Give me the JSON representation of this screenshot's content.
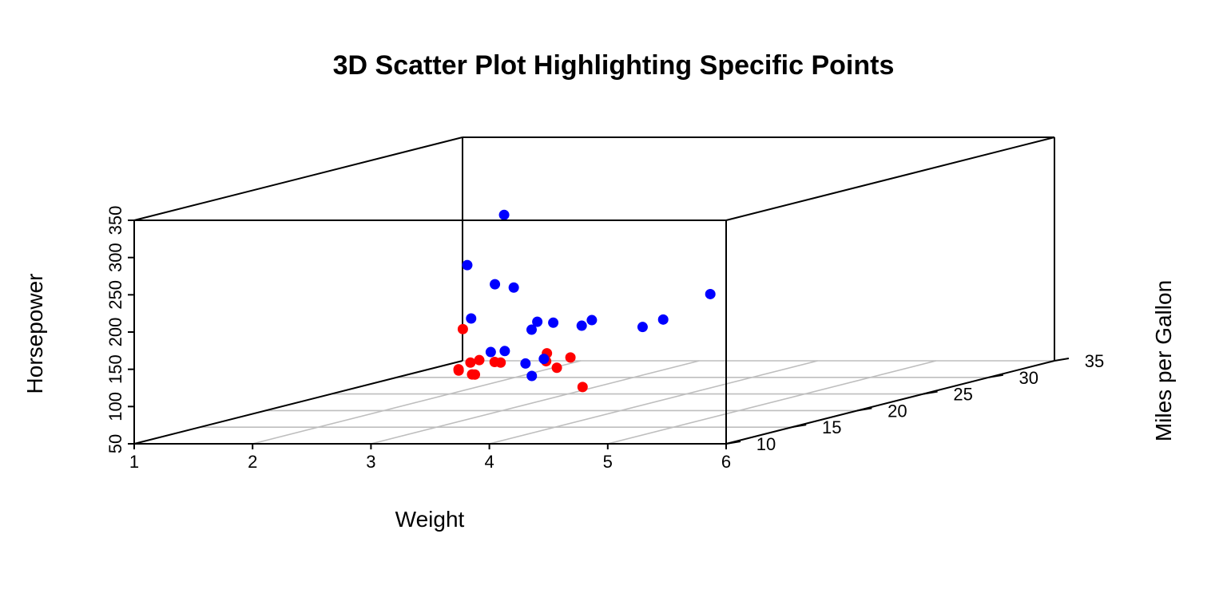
{
  "chart_data": {
    "type": "scatter",
    "title": "3D Scatter Plot Highlighting Specific Points",
    "xlabel": "Weight",
    "ylabel": "Miles per Gallon",
    "zlabel": "Horsepower",
    "xlim": [
      1,
      6
    ],
    "ylim": [
      10,
      35
    ],
    "zlim": [
      50,
      350
    ],
    "x_ticks": [
      "1",
      "2",
      "3",
      "4",
      "5",
      "6"
    ],
    "y_ticks": [
      "10",
      "15",
      "20",
      "25",
      "30",
      "35"
    ],
    "z_ticks": [
      "50",
      "100",
      "150",
      "200",
      "250",
      "300",
      "350"
    ],
    "grid": true,
    "colors": {
      "highlighted": "#ff0000",
      "other": "#0000ff",
      "axes": "#000000",
      "grid": "#bebebe"
    },
    "series": [
      {
        "color": "#ff0000",
        "points": [
          {
            "x": 2.62,
            "y": 21.0,
            "z": 110
          },
          {
            "x": 2.875,
            "y": 21.0,
            "z": 110
          },
          {
            "x": 2.32,
            "y": 22.8,
            "z": 93
          },
          {
            "x": 3.215,
            "y": 21.4,
            "z": 110
          },
          {
            "x": 3.19,
            "y": 24.4,
            "z": 62
          },
          {
            "x": 3.15,
            "y": 22.8,
            "z": 95
          },
          {
            "x": 2.2,
            "y": 32.4,
            "z": 66
          },
          {
            "x": 1.615,
            "y": 30.4,
            "z": 52
          },
          {
            "x": 1.835,
            "y": 33.9,
            "z": 65
          },
          {
            "x": 2.465,
            "y": 21.5,
            "z": 97
          },
          {
            "x": 1.935,
            "y": 27.3,
            "z": 66
          },
          {
            "x": 2.14,
            "y": 26.0,
            "z": 91
          },
          {
            "x": 1.513,
            "y": 30.4,
            "z": 113
          },
          {
            "x": 2.78,
            "y": 21.4,
            "z": 109
          }
        ]
      },
      {
        "color": "#0000ff",
        "points": [
          {
            "x": 3.44,
            "y": 18.7,
            "z": 175
          },
          {
            "x": 3.46,
            "y": 18.1,
            "z": 105
          },
          {
            "x": 3.57,
            "y": 14.3,
            "z": 245
          },
          {
            "x": 3.44,
            "y": 19.2,
            "z": 123
          },
          {
            "x": 3.44,
            "y": 17.8,
            "z": 123
          },
          {
            "x": 4.07,
            "y": 16.4,
            "z": 180
          },
          {
            "x": 3.73,
            "y": 17.3,
            "z": 180
          },
          {
            "x": 3.78,
            "y": 15.2,
            "z": 180
          },
          {
            "x": 5.25,
            "y": 10.4,
            "z": 205
          },
          {
            "x": 5.424,
            "y": 10.4,
            "z": 215
          },
          {
            "x": 5.345,
            "y": 14.7,
            "z": 230
          },
          {
            "x": 3.52,
            "y": 15.5,
            "z": 150
          },
          {
            "x": 3.435,
            "y": 15.2,
            "z": 150
          },
          {
            "x": 3.84,
            "y": 13.3,
            "z": 245
          },
          {
            "x": 3.845,
            "y": 19.2,
            "z": 175
          },
          {
            "x": 3.17,
            "y": 15.8,
            "z": 264
          },
          {
            "x": 2.77,
            "y": 19.7,
            "z": 175
          },
          {
            "x": 3.57,
            "y": 15.0,
            "z": 335
          }
        ]
      }
    ]
  }
}
